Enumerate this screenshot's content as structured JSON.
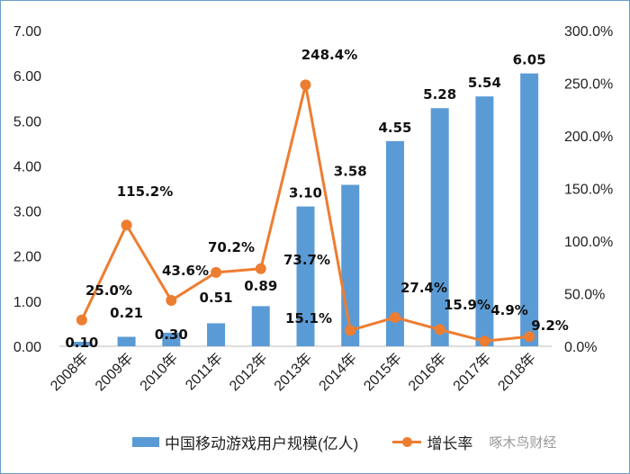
{
  "chart_data": {
    "type": "bar+line",
    "categories": [
      "2008年",
      "2009年",
      "2010年",
      "2011年",
      "2012年",
      "2013年",
      "2014年",
      "2015年",
      "2016年",
      "2017年",
      "2018年"
    ],
    "series": [
      {
        "name": "中国移动游戏用户规模(亿人)",
        "type": "bar",
        "axis": "left",
        "color": "#5b9bd5",
        "values": [
          0.1,
          0.21,
          0.3,
          0.51,
          0.89,
          3.1,
          3.58,
          4.55,
          5.28,
          5.54,
          6.05
        ],
        "labels": [
          "0.10",
          "0.21",
          "0.30",
          "0.51",
          "0.89",
          "3.10",
          "3.58",
          "4.55",
          "5.28",
          "5.54",
          "6.05"
        ]
      },
      {
        "name": "增长率",
        "type": "line",
        "axis": "right",
        "color": "#ed7d31",
        "values": [
          25.0,
          115.2,
          43.6,
          70.2,
          73.7,
          248.4,
          15.1,
          27.4,
          15.9,
          4.9,
          9.2
        ],
        "labels": [
          "25.0%",
          "115.2%",
          "43.6%",
          "70.2%",
          "73.7%",
          "248.4%",
          "15.1%",
          "27.4%",
          "15.9%",
          "4.9%",
          "9.2%"
        ]
      }
    ],
    "y_left": {
      "range": [
        0,
        7
      ],
      "ticks": [
        "0.00",
        "1.00",
        "2.00",
        "3.00",
        "4.00",
        "5.00",
        "6.00",
        "7.00"
      ]
    },
    "y_right": {
      "range": [
        0,
        300
      ],
      "ticks": [
        "0.0%",
        "50.0%",
        "100.0%",
        "150.0%",
        "200.0%",
        "250.0%",
        "300.0%"
      ]
    },
    "grid": false,
    "legend": "bottom"
  },
  "watermark": "啄木鸟财经"
}
